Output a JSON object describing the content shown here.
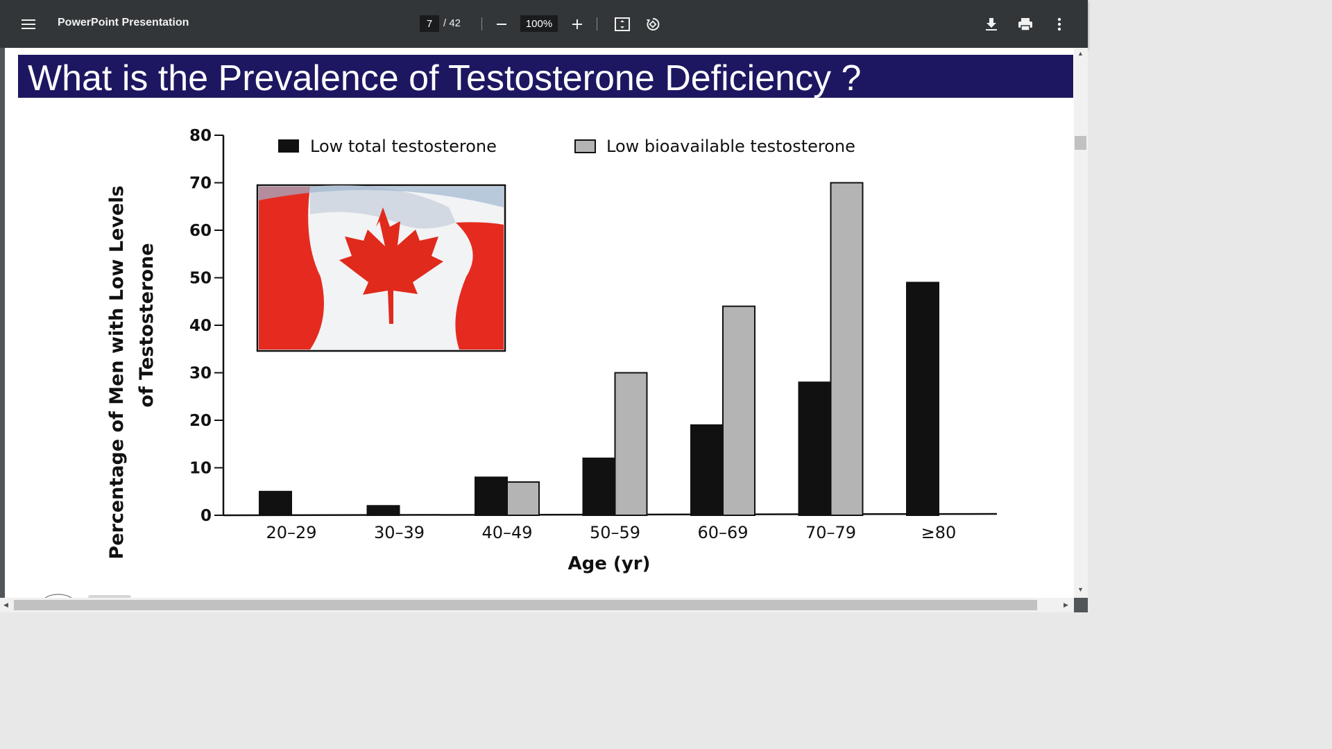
{
  "toolbar": {
    "menu_icon": "hamburger-menu-icon",
    "title": "PowerPoint Presentation",
    "page_current": "7",
    "page_total": "/ 42",
    "zoom": "100%",
    "zoom_out_icon": "minus-icon",
    "zoom_in_icon": "plus-icon",
    "fit_icon": "fit-page-icon",
    "rotate_icon": "rotate-icon",
    "download_icon": "download-icon",
    "print_icon": "print-icon",
    "more_icon": "more-vert-icon"
  },
  "slide": {
    "title": "What is the Prevalence of Testosterone Deficiency ?"
  },
  "chart_data": {
    "type": "bar",
    "categories": [
      "20–29",
      "30–39",
      "40–49",
      "50–59",
      "60–69",
      "70–79",
      "≥80"
    ],
    "series": [
      {
        "name": "Low total testosterone",
        "values": [
          5,
          2,
          8,
          12,
          19,
          28,
          49
        ],
        "color": "#111111"
      },
      {
        "name": "Low bioavailable testosterone",
        "values": [
          0,
          0,
          7,
          30,
          44,
          70,
          null
        ],
        "color": "#b4b4b4"
      }
    ],
    "ylim": [
      0,
      80
    ],
    "yticks": [
      "0",
      "10",
      "20",
      "30",
      "40",
      "50",
      "60",
      "70",
      "80"
    ],
    "ylabel_line1": "Percentage of Men with Low Levels",
    "ylabel_line2": "of Testosterone",
    "xlabel": "Age (yr)",
    "legend_position": "top",
    "grid": false
  },
  "image": {
    "subject": "Canadian flag waving"
  }
}
